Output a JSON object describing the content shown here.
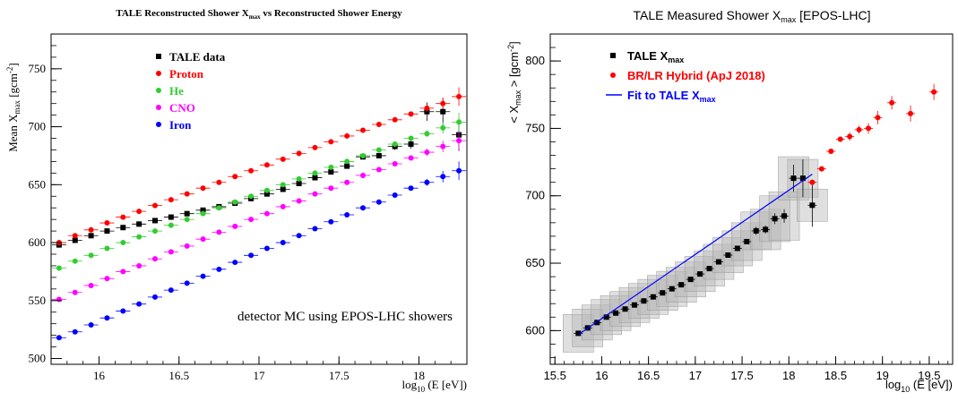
{
  "chart_data": [
    {
      "type": "scatter",
      "title_main": "TALE Reconstructed Shower X",
      "title_sub": "max",
      "title_rest": " vs Reconstructed Shower Energy",
      "ylabel_main": "Mean X",
      "ylabel_sub": "max",
      "ylabel_unit_pre": " [gcm",
      "ylabel_unit_sup": "-2",
      "ylabel_unit_post": "]",
      "xlabel_pre": "log",
      "xlabel_sub": "10",
      "xlabel_post": " (E [eV])",
      "xlim": [
        15.7,
        18.3
      ],
      "ylim": [
        495,
        780
      ],
      "xticks": [
        "16",
        "16.5",
        "17",
        "17.5",
        "18"
      ],
      "xtick_values": [
        16,
        16.5,
        17,
        17.5,
        18
      ],
      "yticks": [
        "500",
        "550",
        "600",
        "650",
        "700",
        "750"
      ],
      "ytick_values": [
        500,
        550,
        600,
        650,
        700,
        750
      ],
      "grid": false,
      "legend_position": "top-center",
      "annotation": "detector MC using EPOS-LHC showers",
      "series": [
        {
          "name": "TALE data",
          "color": "#000000",
          "marker": "square",
          "x": [
            15.75,
            15.85,
            15.95,
            16.05,
            16.15,
            16.25,
            16.35,
            16.45,
            16.55,
            16.65,
            16.75,
            16.85,
            16.95,
            17.05,
            17.15,
            17.25,
            17.35,
            17.45,
            17.55,
            17.65,
            17.75,
            17.85,
            17.95,
            18.05,
            18.15,
            18.25
          ],
          "y": [
            598,
            602,
            606,
            610,
            613,
            616,
            619,
            622,
            625,
            628,
            631,
            634,
            638,
            642,
            646,
            651,
            656,
            661,
            666,
            674,
            675,
            683,
            685,
            713,
            713,
            693
          ],
          "yerr": [
            1,
            1,
            1,
            1,
            1,
            1,
            1,
            1,
            1,
            1,
            1,
            1,
            1,
            1,
            1,
            1,
            1,
            1,
            2,
            2,
            2,
            3,
            4,
            8,
            12,
            14
          ]
        },
        {
          "name": "Proton",
          "color": "#ff0000",
          "marker": "circle",
          "x": [
            15.75,
            15.85,
            15.95,
            16.05,
            16.15,
            16.25,
            16.35,
            16.45,
            16.55,
            16.65,
            16.75,
            16.85,
            16.95,
            17.05,
            17.15,
            17.25,
            17.35,
            17.45,
            17.55,
            17.65,
            17.75,
            17.85,
            17.95,
            18.05,
            18.15,
            18.25
          ],
          "y": [
            600,
            606,
            611,
            617,
            622,
            627,
            632,
            637,
            642,
            647,
            652,
            657,
            662,
            667,
            672,
            677,
            682,
            687,
            692,
            697,
            702,
            706,
            711,
            716,
            720,
            726
          ],
          "yerr": [
            0,
            0,
            0,
            0,
            0,
            0,
            0,
            0,
            0,
            0,
            0,
            0,
            0,
            0,
            0,
            0,
            0,
            0,
            0,
            0,
            0,
            0,
            2,
            3,
            5,
            8
          ]
        },
        {
          "name": "He",
          "color": "#33cc33",
          "marker": "circle",
          "x": [
            15.75,
            15.85,
            15.95,
            16.05,
            16.15,
            16.25,
            16.35,
            16.45,
            16.55,
            16.65,
            16.75,
            16.85,
            16.95,
            17.05,
            17.15,
            17.25,
            17.35,
            17.45,
            17.55,
            17.65,
            17.75,
            17.85,
            17.95,
            18.05,
            18.15,
            18.25
          ],
          "y": [
            578,
            584,
            589,
            595,
            600,
            605,
            610,
            615,
            620,
            625,
            630,
            635,
            640,
            645,
            650,
            655,
            660,
            665,
            670,
            675,
            680,
            685,
            690,
            694,
            699,
            704
          ],
          "yerr": [
            0,
            0,
            0,
            0,
            0,
            0,
            0,
            0,
            0,
            0,
            0,
            0,
            0,
            0,
            0,
            0,
            0,
            0,
            0,
            0,
            0,
            0,
            2,
            3,
            5,
            8
          ]
        },
        {
          "name": "CNO",
          "color": "#ff00ff",
          "marker": "circle",
          "x": [
            15.75,
            15.85,
            15.95,
            16.05,
            16.15,
            16.25,
            16.35,
            16.45,
            16.55,
            16.65,
            16.75,
            16.85,
            16.95,
            17.05,
            17.15,
            17.25,
            17.35,
            17.45,
            17.55,
            17.65,
            17.75,
            17.85,
            17.95,
            18.05,
            18.15,
            18.25
          ],
          "y": [
            551,
            557,
            563,
            569,
            575,
            580,
            586,
            592,
            597,
            603,
            609,
            614,
            620,
            625,
            631,
            636,
            642,
            647,
            652,
            658,
            663,
            668,
            673,
            678,
            683,
            688
          ],
          "yerr": [
            0,
            0,
            0,
            0,
            0,
            0,
            0,
            0,
            0,
            0,
            0,
            0,
            0,
            0,
            0,
            0,
            0,
            0,
            0,
            0,
            0,
            0,
            2,
            3,
            5,
            8
          ]
        },
        {
          "name": "Iron",
          "color": "#0000ff",
          "marker": "circle",
          "x": [
            15.75,
            15.85,
            15.95,
            16.05,
            16.15,
            16.25,
            16.35,
            16.45,
            16.55,
            16.65,
            16.75,
            16.85,
            16.95,
            17.05,
            17.15,
            17.25,
            17.35,
            17.45,
            17.55,
            17.65,
            17.75,
            17.85,
            17.95,
            18.05,
            18.15,
            18.25
          ],
          "y": [
            518,
            523,
            529,
            535,
            541,
            547,
            553,
            559,
            565,
            571,
            577,
            583,
            589,
            595,
            600,
            606,
            612,
            618,
            624,
            630,
            635,
            641,
            647,
            652,
            657,
            662
          ],
          "yerr": [
            0,
            0,
            0,
            0,
            0,
            0,
            0,
            0,
            0,
            0,
            0,
            0,
            0,
            0,
            0,
            0,
            0,
            0,
            0,
            0,
            0,
            0,
            2,
            3,
            5,
            8
          ]
        }
      ]
    },
    {
      "type": "scatter",
      "title_main": "TALE Measured Shower X",
      "title_sub": "max",
      "title_rest": " [EPOS-LHC]",
      "ylabel_pre": "< X",
      "ylabel_sub": "max",
      "ylabel_unit_pre": " > [gcm",
      "ylabel_unit_sup": "-2",
      "ylabel_unit_post": "]",
      "xlabel_pre": "log",
      "xlabel_sub": "10",
      "xlabel_post": " (E [eV])",
      "xlim": [
        15.45,
        19.75
      ],
      "ylim": [
        575,
        820
      ],
      "xticks": [
        "15.5",
        "16",
        "16.5",
        "17",
        "17.5",
        "18",
        "18.5",
        "19",
        "19.5"
      ],
      "xtick_values": [
        15.5,
        16,
        16.5,
        17,
        17.5,
        18,
        18.5,
        19,
        19.5
      ],
      "yticks": [
        "600",
        "650",
        "700",
        "750",
        "800"
      ],
      "ytick_values": [
        600,
        650,
        700,
        750,
        800
      ],
      "grid": false,
      "legend_position": "top-left",
      "legend": [
        {
          "label_main": "TALE X",
          "label_sub": "max",
          "color": "#000000",
          "marker": "square"
        },
        {
          "label_main": "BR/LR Hybrid (ApJ 2018)",
          "label_sub": "",
          "color": "#ff0000",
          "marker": "circle"
        },
        {
          "label_main": "Fit to TALE X",
          "label_sub": "max",
          "color": "#0000ff",
          "marker": "line"
        }
      ],
      "series": [
        {
          "name": "TALE X max",
          "color": "#000000",
          "marker": "square",
          "x": [
            15.75,
            15.85,
            15.95,
            16.05,
            16.15,
            16.25,
            16.35,
            16.45,
            16.55,
            16.65,
            16.75,
            16.85,
            16.95,
            17.05,
            17.15,
            17.25,
            17.35,
            17.45,
            17.55,
            17.65,
            17.75,
            17.85,
            17.95,
            18.05,
            18.15,
            18.25
          ],
          "y": [
            598,
            602,
            606,
            610,
            613,
            616,
            619,
            622,
            625,
            628,
            631,
            634,
            638,
            642,
            646,
            651,
            656,
            661,
            666,
            674,
            675,
            683,
            685,
            713,
            713,
            693
          ],
          "yerr": [
            1,
            1,
            1,
            1,
            1,
            1,
            1,
            1,
            1,
            1,
            1,
            1,
            1,
            1,
            1,
            1,
            1,
            1,
            2,
            3,
            3,
            4,
            5,
            10,
            14,
            16
          ],
          "syserr": [
            14,
            14,
            13,
            13,
            13,
            13,
            13,
            13,
            13,
            13,
            13,
            13,
            13,
            13,
            13,
            13,
            13,
            13,
            14,
            14,
            15,
            17,
            18,
            16,
            14,
            12
          ]
        },
        {
          "name": "BR/LR Hybrid (ApJ 2018)",
          "color": "#ff0000",
          "marker": "circle",
          "x": [
            18.25,
            18.35,
            18.45,
            18.55,
            18.65,
            18.75,
            18.85,
            18.95,
            19.1,
            19.3,
            19.55
          ],
          "y": [
            710,
            720,
            733,
            742,
            744,
            749,
            750,
            758,
            769,
            761,
            777
          ],
          "yerr": [
            1,
            1,
            2,
            2,
            3,
            3,
            4,
            5,
            5,
            6,
            6
          ]
        },
        {
          "name": "Fit to TALE X max",
          "color": "#0000ff",
          "marker": "line",
          "x": [
            15.75,
            18.25
          ],
          "y": [
            597,
            716
          ]
        }
      ]
    }
  ]
}
